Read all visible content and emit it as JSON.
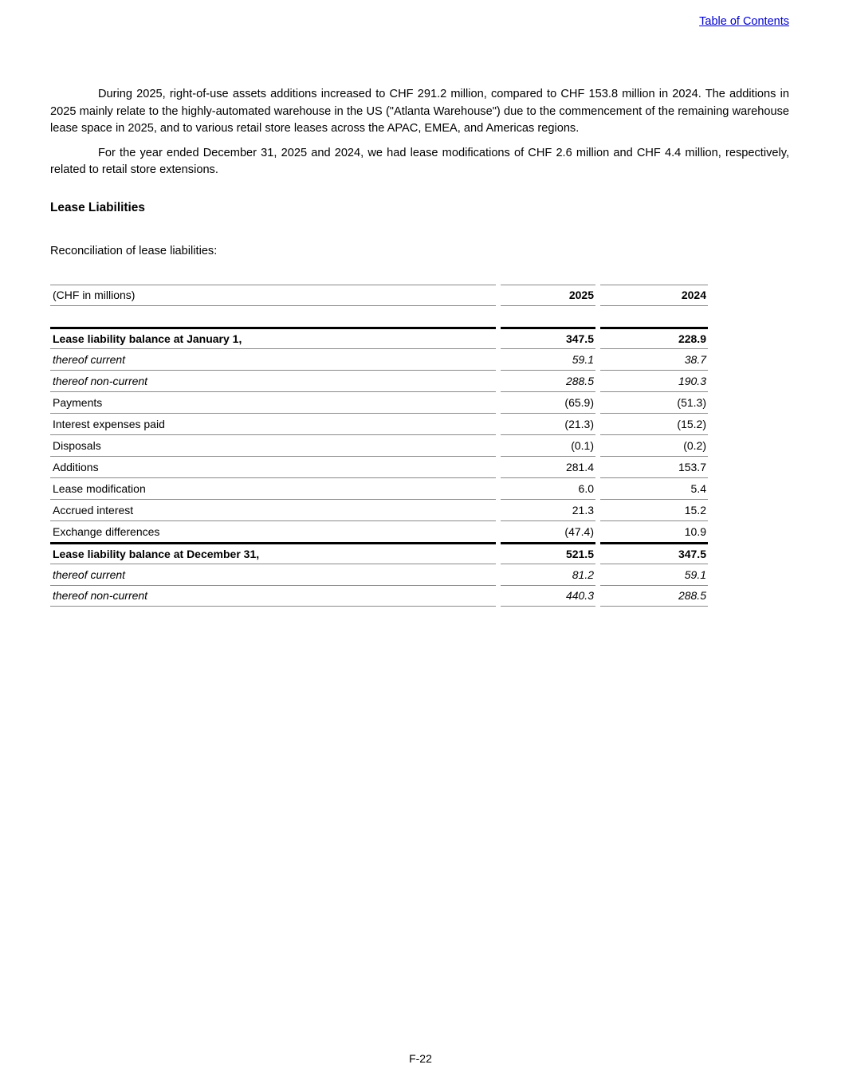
{
  "header": {
    "toc_link": "Table of Contents"
  },
  "paragraphs": [
    "During 2025, right-of-use assets additions increased to CHF 291.2 million, compared to CHF 153.8 million in 2024. The additions in 2025 mainly relate to the highly-automated warehouse in the US (\"Atlanta Warehouse\") due to the commencement of the remaining warehouse lease space in 2025, and to various retail store leases across the APAC, EMEA, and Americas regions.",
    "For the year ended December 31, 2025 and 2024, we had lease modifications of CHF 2.6 million and CHF 4.4 million, respectively, related to retail store extensions."
  ],
  "section": {
    "heading": "Lease Liabilities",
    "intro": "Reconciliation of lease liabilities:"
  },
  "table": {
    "header": {
      "label": "(CHF in millions)",
      "col1": "2025",
      "col2": "2024"
    },
    "rows": [
      {
        "label": "Lease liability balance at January 1,",
        "v2025": "347.5",
        "v2024": "228.9",
        "style": "bold",
        "top_border": true
      },
      {
        "label": "thereof current",
        "v2025": "59.1",
        "v2024": "38.7",
        "style": "italic",
        "top_border": false
      },
      {
        "label": "thereof non-current",
        "v2025": "288.5",
        "v2024": "190.3",
        "style": "italic",
        "top_border": false
      },
      {
        "label": "Payments",
        "v2025": "(65.9)",
        "v2024": "(51.3)",
        "style": "normal",
        "top_border": false
      },
      {
        "label": "Interest expenses paid",
        "v2025": "(21.3)",
        "v2024": "(15.2)",
        "style": "normal",
        "top_border": false
      },
      {
        "label": "Disposals",
        "v2025": "(0.1)",
        "v2024": "(0.2)",
        "style": "normal",
        "top_border": false
      },
      {
        "label": "Additions",
        "v2025": "281.4",
        "v2024": "153.7",
        "style": "normal",
        "top_border": false
      },
      {
        "label": "Lease modification",
        "v2025": "6.0",
        "v2024": "5.4",
        "style": "normal",
        "top_border": false
      },
      {
        "label": "Accrued interest",
        "v2025": "21.3",
        "v2024": "15.2",
        "style": "normal",
        "top_border": false
      },
      {
        "label": "Exchange differences",
        "v2025": "(47.4)",
        "v2024": "10.9",
        "style": "normal",
        "top_border": false
      },
      {
        "label": "Lease liability balance at December 31,",
        "v2025": "521.5",
        "v2024": "347.5",
        "style": "bold",
        "top_border": true
      },
      {
        "label": "thereof current",
        "v2025": "81.2",
        "v2024": "59.1",
        "style": "italic",
        "top_border": false
      },
      {
        "label": "thereof non-current",
        "v2025": "440.3",
        "v2024": "288.5",
        "style": "italic",
        "top_border": false
      }
    ]
  },
  "footer": {
    "page_number": "F-22"
  },
  "colors": {
    "link": "#0000cc",
    "border_gray": "#8a8a8a",
    "border_black": "#000000"
  }
}
